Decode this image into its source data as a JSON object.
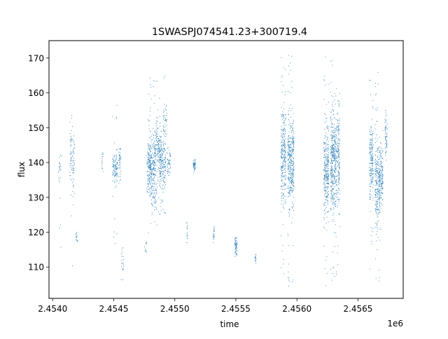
{
  "chart_data": {
    "type": "scatter",
    "title": "1SWASPJ074541.23+300719.4",
    "xlabel": "time",
    "ylabel": "flux",
    "x_offset_label": "1e6",
    "xlim": [
      2.45397,
      2.45687
    ],
    "ylim": [
      101,
      175
    ],
    "x_ticks": [
      2.454,
      2.4545,
      2.455,
      2.4555,
      2.456,
      2.4565
    ],
    "x_tick_labels": [
      "2.4540",
      "2.4545",
      "2.4550",
      "2.4555",
      "2.4560",
      "2.4565"
    ],
    "y_ticks": [
      110,
      120,
      130,
      140,
      150,
      160,
      170
    ],
    "y_tick_labels": [
      "110",
      "120",
      "130",
      "140",
      "150",
      "160",
      "170"
    ],
    "grid": false,
    "marker_color": "#1f77b4",
    "clusters": [
      {
        "x": 2.45406,
        "width": 3e-05,
        "center": 138,
        "spread": 3,
        "min": 112,
        "max": 145,
        "n": 25
      },
      {
        "x": 2.45416,
        "width": 4e-05,
        "center": 141,
        "spread": 5,
        "min": 104,
        "max": 159,
        "n": 90
      },
      {
        "x": 2.4542,
        "width": 2e-05,
        "center": 118,
        "spread": 1,
        "min": 116,
        "max": 120,
        "n": 15
      },
      {
        "x": 2.45441,
        "width": 2e-05,
        "center": 140,
        "spread": 1.5,
        "min": 136,
        "max": 143,
        "n": 15
      },
      {
        "x": 2.45451,
        "width": 4e-05,
        "center": 139,
        "spread": 2.5,
        "min": 115,
        "max": 158,
        "n": 110
      },
      {
        "x": 2.45455,
        "width": 2e-05,
        "center": 140,
        "spread": 2,
        "min": 134,
        "max": 144,
        "n": 40
      },
      {
        "x": 2.45457,
        "width": 2e-05,
        "center": 111,
        "spread": 2,
        "min": 106,
        "max": 116,
        "n": 20
      },
      {
        "x": 2.45476,
        "width": 2e-05,
        "center": 116,
        "spread": 1,
        "min": 114,
        "max": 118,
        "n": 10
      },
      {
        "x": 2.45479,
        "width": 4e-05,
        "center": 137,
        "spread": 3,
        "min": 130,
        "max": 143,
        "n": 90
      },
      {
        "x": 2.45481,
        "width": 6e-05,
        "center": 140,
        "spread": 4,
        "min": 118,
        "max": 167,
        "n": 220
      },
      {
        "x": 2.45483,
        "width": 5e-05,
        "center": 130,
        "spread": 2,
        "min": 125,
        "max": 134,
        "n": 50
      },
      {
        "x": 2.45486,
        "width": 6e-05,
        "center": 143,
        "spread": 4,
        "min": 120,
        "max": 165,
        "n": 200
      },
      {
        "x": 2.4549,
        "width": 5e-05,
        "center": 140,
        "spread": 4,
        "min": 124,
        "max": 150,
        "n": 170
      },
      {
        "x": 2.45492,
        "width": 3e-05,
        "center": 152,
        "spread": 2,
        "min": 147,
        "max": 167,
        "n": 40
      },
      {
        "x": 2.45495,
        "width": 3e-05,
        "center": 140,
        "spread": 2,
        "min": 135,
        "max": 146,
        "n": 50
      },
      {
        "x": 2.4551,
        "width": 1e-05,
        "center": 120,
        "spread": 2,
        "min": 117,
        "max": 123,
        "n": 15
      },
      {
        "x": 2.45516,
        "width": 2e-05,
        "center": 139,
        "spread": 0.8,
        "min": 137,
        "max": 141,
        "n": 50
      },
      {
        "x": 2.45532,
        "width": 1e-05,
        "center": 119,
        "spread": 1.5,
        "min": 116,
        "max": 123,
        "n": 20
      },
      {
        "x": 2.4555,
        "width": 2e-05,
        "center": 116,
        "spread": 1.5,
        "min": 113,
        "max": 119,
        "n": 60
      },
      {
        "x": 2.45566,
        "width": 1e-05,
        "center": 112.5,
        "spread": 0.5,
        "min": 111,
        "max": 114,
        "n": 15
      },
      {
        "x": 2.45589,
        "width": 4e-05,
        "center": 142,
        "spread": 7,
        "min": 108,
        "max": 172,
        "n": 280
      },
      {
        "x": 2.45595,
        "width": 5e-05,
        "center": 140,
        "spread": 6,
        "min": 104,
        "max": 171,
        "n": 380
      },
      {
        "x": 2.45624,
        "width": 4e-05,
        "center": 137,
        "spread": 6,
        "min": 104,
        "max": 171,
        "n": 300
      },
      {
        "x": 2.4563,
        "width": 5e-05,
        "center": 140,
        "spread": 7,
        "min": 106,
        "max": 172,
        "n": 420
      },
      {
        "x": 2.45634,
        "width": 2e-05,
        "center": 143,
        "spread": 8,
        "min": 110,
        "max": 171,
        "n": 150
      },
      {
        "x": 2.45661,
        "width": 3e-05,
        "center": 140,
        "spread": 5,
        "min": 108,
        "max": 168,
        "n": 190
      },
      {
        "x": 2.45666,
        "width": 4e-05,
        "center": 133,
        "spread": 6,
        "min": 104,
        "max": 168,
        "n": 250
      },
      {
        "x": 2.45669,
        "width": 3e-05,
        "center": 136,
        "spread": 4,
        "min": 118,
        "max": 150,
        "n": 140
      },
      {
        "x": 2.45673,
        "width": 2e-05,
        "center": 148,
        "spread": 3,
        "min": 140,
        "max": 155,
        "n": 60
      }
    ]
  }
}
